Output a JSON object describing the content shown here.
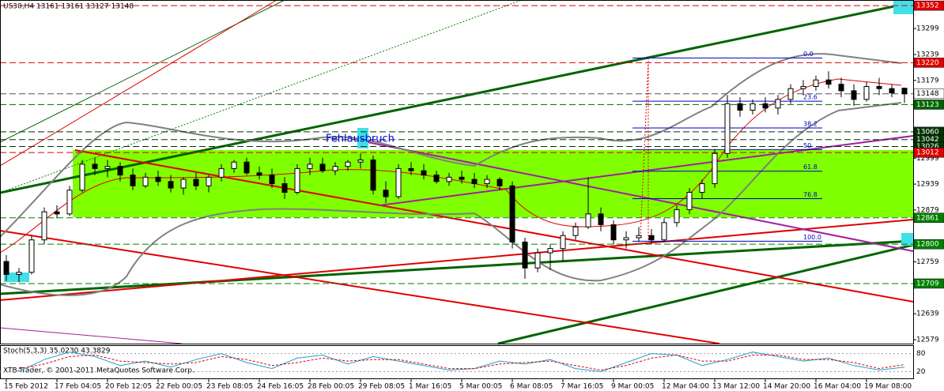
{
  "chart_data": {
    "type": "candlestick",
    "title": "US30,H4  13161 13161 13127 13148",
    "annotation": "Fehlausbruch",
    "footer": "XTB-Trader, © 2001-2011 MetaQuotes Software Corp.",
    "categories": [
      "15 Feb 2012",
      null,
      null,
      null,
      "17 Feb 04:05",
      null,
      null,
      null,
      "20 Feb 12:05",
      null,
      null,
      null,
      "22 Feb 00:05",
      null,
      null,
      null,
      "23 Feb 08:05",
      null,
      null,
      null,
      "24 Feb 16:05",
      null,
      null,
      null,
      "28 Feb 00:05",
      null,
      null,
      null,
      "29 Feb 08:05",
      null,
      null,
      null,
      "1 Mar 16:05",
      null,
      null,
      null,
      "5 Mar 00:05",
      null,
      null,
      null,
      "6 Mar 08:05",
      null,
      null,
      null,
      "7 Mar 16:05",
      null,
      null,
      null,
      "9 Mar 00:05",
      null,
      null,
      null,
      "12 Mar 04:00",
      null,
      null,
      null,
      "13 Mar 12:00",
      null,
      null,
      null,
      "14 Mar 20:00",
      null,
      null,
      null,
      "16 Mar 04:00",
      null,
      null,
      null,
      "19 Mar 08:00",
      null,
      null,
      null
    ],
    "ohlc": [
      [
        12760,
        12775,
        12715,
        12730
      ],
      [
        12730,
        12745,
        12712,
        12735
      ],
      [
        12735,
        12820,
        12730,
        12810
      ],
      [
        12810,
        12885,
        12800,
        12875
      ],
      [
        12875,
        12890,
        12860,
        12870
      ],
      [
        12870,
        12935,
        12865,
        12925
      ],
      [
        12925,
        12995,
        12920,
        12985
      ],
      [
        12985,
        13000,
        12960,
        12975
      ],
      [
        12975,
        12995,
        12955,
        12980
      ],
      [
        12980,
        12990,
        12945,
        12960
      ],
      [
        12960,
        12975,
        12925,
        12935
      ],
      [
        12935,
        12965,
        12930,
        12955
      ],
      [
        12955,
        12970,
        12935,
        12945
      ],
      [
        12945,
        12960,
        12920,
        12930
      ],
      [
        12930,
        12955,
        12915,
        12950
      ],
      [
        12950,
        12965,
        12925,
        12935
      ],
      [
        12935,
        12960,
        12920,
        12955
      ],
      [
        12955,
        12985,
        12945,
        12975
      ],
      [
        12975,
        12995,
        12965,
        12990
      ],
      [
        12990,
        13000,
        12960,
        12965
      ],
      [
        12965,
        12980,
        12950,
        12960
      ],
      [
        12960,
        12975,
        12930,
        12940
      ],
      [
        12940,
        12955,
        12905,
        12920
      ],
      [
        12920,
        12985,
        12915,
        12975
      ],
      [
        12975,
        13000,
        12960,
        12985
      ],
      [
        12985,
        13000,
        12965,
        12970
      ],
      [
        12970,
        12990,
        12960,
        12980
      ],
      [
        12980,
        12995,
        12970,
        12990
      ],
      [
        12990,
        13010,
        12975,
        12995
      ],
      [
        12995,
        13005,
        12915,
        12925
      ],
      [
        12925,
        12945,
        12895,
        12910
      ],
      [
        12910,
        12985,
        12905,
        12975
      ],
      [
        12975,
        12990,
        12960,
        12970
      ],
      [
        12970,
        12985,
        12950,
        12960
      ],
      [
        12960,
        12970,
        12940,
        12945
      ],
      [
        12945,
        12965,
        12935,
        12955
      ],
      [
        12955,
        12970,
        12940,
        12950
      ],
      [
        12950,
        12965,
        12930,
        12940
      ],
      [
        12940,
        12960,
        12930,
        12950
      ],
      [
        12950,
        12955,
        12925,
        12935
      ],
      [
        12935,
        12945,
        12790,
        12805
      ],
      [
        12805,
        12815,
        12720,
        12745
      ],
      [
        12745,
        12790,
        12735,
        12780
      ],
      [
        12780,
        12800,
        12740,
        12790
      ],
      [
        12790,
        12830,
        12760,
        12820
      ],
      [
        12820,
        12850,
        12810,
        12840
      ],
      [
        12840,
        12955,
        12835,
        12870
      ],
      [
        12870,
        12885,
        12830,
        12845
      ],
      [
        12845,
        12855,
        12800,
        12810
      ],
      [
        12810,
        12830,
        12790,
        12815
      ],
      [
        12815,
        12840,
        12805,
        12820
      ],
      [
        12820,
        12835,
        12800,
        12810
      ],
      [
        12810,
        12860,
        12805,
        12850
      ],
      [
        12850,
        12890,
        12840,
        12880
      ],
      [
        12880,
        12930,
        12870,
        12920
      ],
      [
        12920,
        12950,
        12905,
        12940
      ],
      [
        12940,
        13020,
        12930,
        13010
      ],
      [
        13010,
        13145,
        13000,
        13125
      ],
      [
        13125,
        13140,
        13095,
        13110
      ],
      [
        13110,
        13135,
        13100,
        13125
      ],
      [
        13125,
        13140,
        13105,
        13115
      ],
      [
        13115,
        13145,
        13100,
        13135
      ],
      [
        13135,
        13170,
        13125,
        13160
      ],
      [
        13160,
        13180,
        13145,
        13165
      ],
      [
        13165,
        13190,
        13155,
        13180
      ],
      [
        13180,
        13200,
        13160,
        13170
      ],
      [
        13170,
        13185,
        13140,
        13155
      ],
      [
        13155,
        13170,
        13120,
        13135
      ],
      [
        13135,
        13175,
        13130,
        13165
      ],
      [
        13165,
        13185,
        13145,
        13160
      ],
      [
        13160,
        13170,
        13140,
        13150
      ],
      [
        13161,
        13161,
        13127,
        13148
      ]
    ],
    "ylim": [
      12570,
      13365
    ],
    "yticks": [
      13299,
      13239,
      13179,
      12999,
      12939,
      12879,
      12759,
      12639,
      12579
    ],
    "levels": [
      {
        "value": 13352,
        "color": "#e00000"
      },
      {
        "value": 13220,
        "color": "#e00000"
      },
      {
        "value": 13148,
        "color": "#ffffff"
      },
      {
        "value": 13123,
        "color": "#006400"
      },
      {
        "value": 13060,
        "color": "#003300"
      },
      {
        "value": 13042,
        "color": "#003300"
      },
      {
        "value": 13026,
        "color": "#003300"
      },
      {
        "value": 13012,
        "color": "#e00000"
      },
      {
        "value": 12861,
        "color": "#008000"
      },
      {
        "value": 12800,
        "color": "#008000"
      },
      {
        "value": 12709,
        "color": "#008000"
      }
    ],
    "fib": {
      "high": 13231,
      "low": 12807,
      "levels": [
        {
          "value": 0,
          "label": "0.0"
        },
        23.6,
        38.2,
        50,
        61.8,
        76.8,
        {
          "value": 100,
          "label": "100.0"
        }
      ]
    },
    "stoch": {
      "label": "Stoch(5,3,3) 35.0230 43.3829",
      "ylim": [
        0,
        100
      ],
      "yticks": [
        80,
        20
      ],
      "main": [
        20,
        60,
        85,
        70,
        40,
        55,
        35,
        60,
        80,
        50,
        30,
        65,
        75,
        45,
        70,
        55,
        40,
        25,
        30,
        55,
        45,
        60,
        30,
        20,
        50,
        80,
        75,
        40,
        60,
        85,
        70,
        55,
        65,
        40,
        25,
        35.023
      ],
      "signal": [
        30,
        45,
        70,
        75,
        55,
        50,
        45,
        50,
        70,
        60,
        40,
        50,
        65,
        55,
        60,
        60,
        45,
        30,
        30,
        45,
        50,
        55,
        40,
        25,
        40,
        65,
        75,
        55,
        55,
        75,
        75,
        60,
        60,
        50,
        30,
        43.3829
      ]
    }
  }
}
